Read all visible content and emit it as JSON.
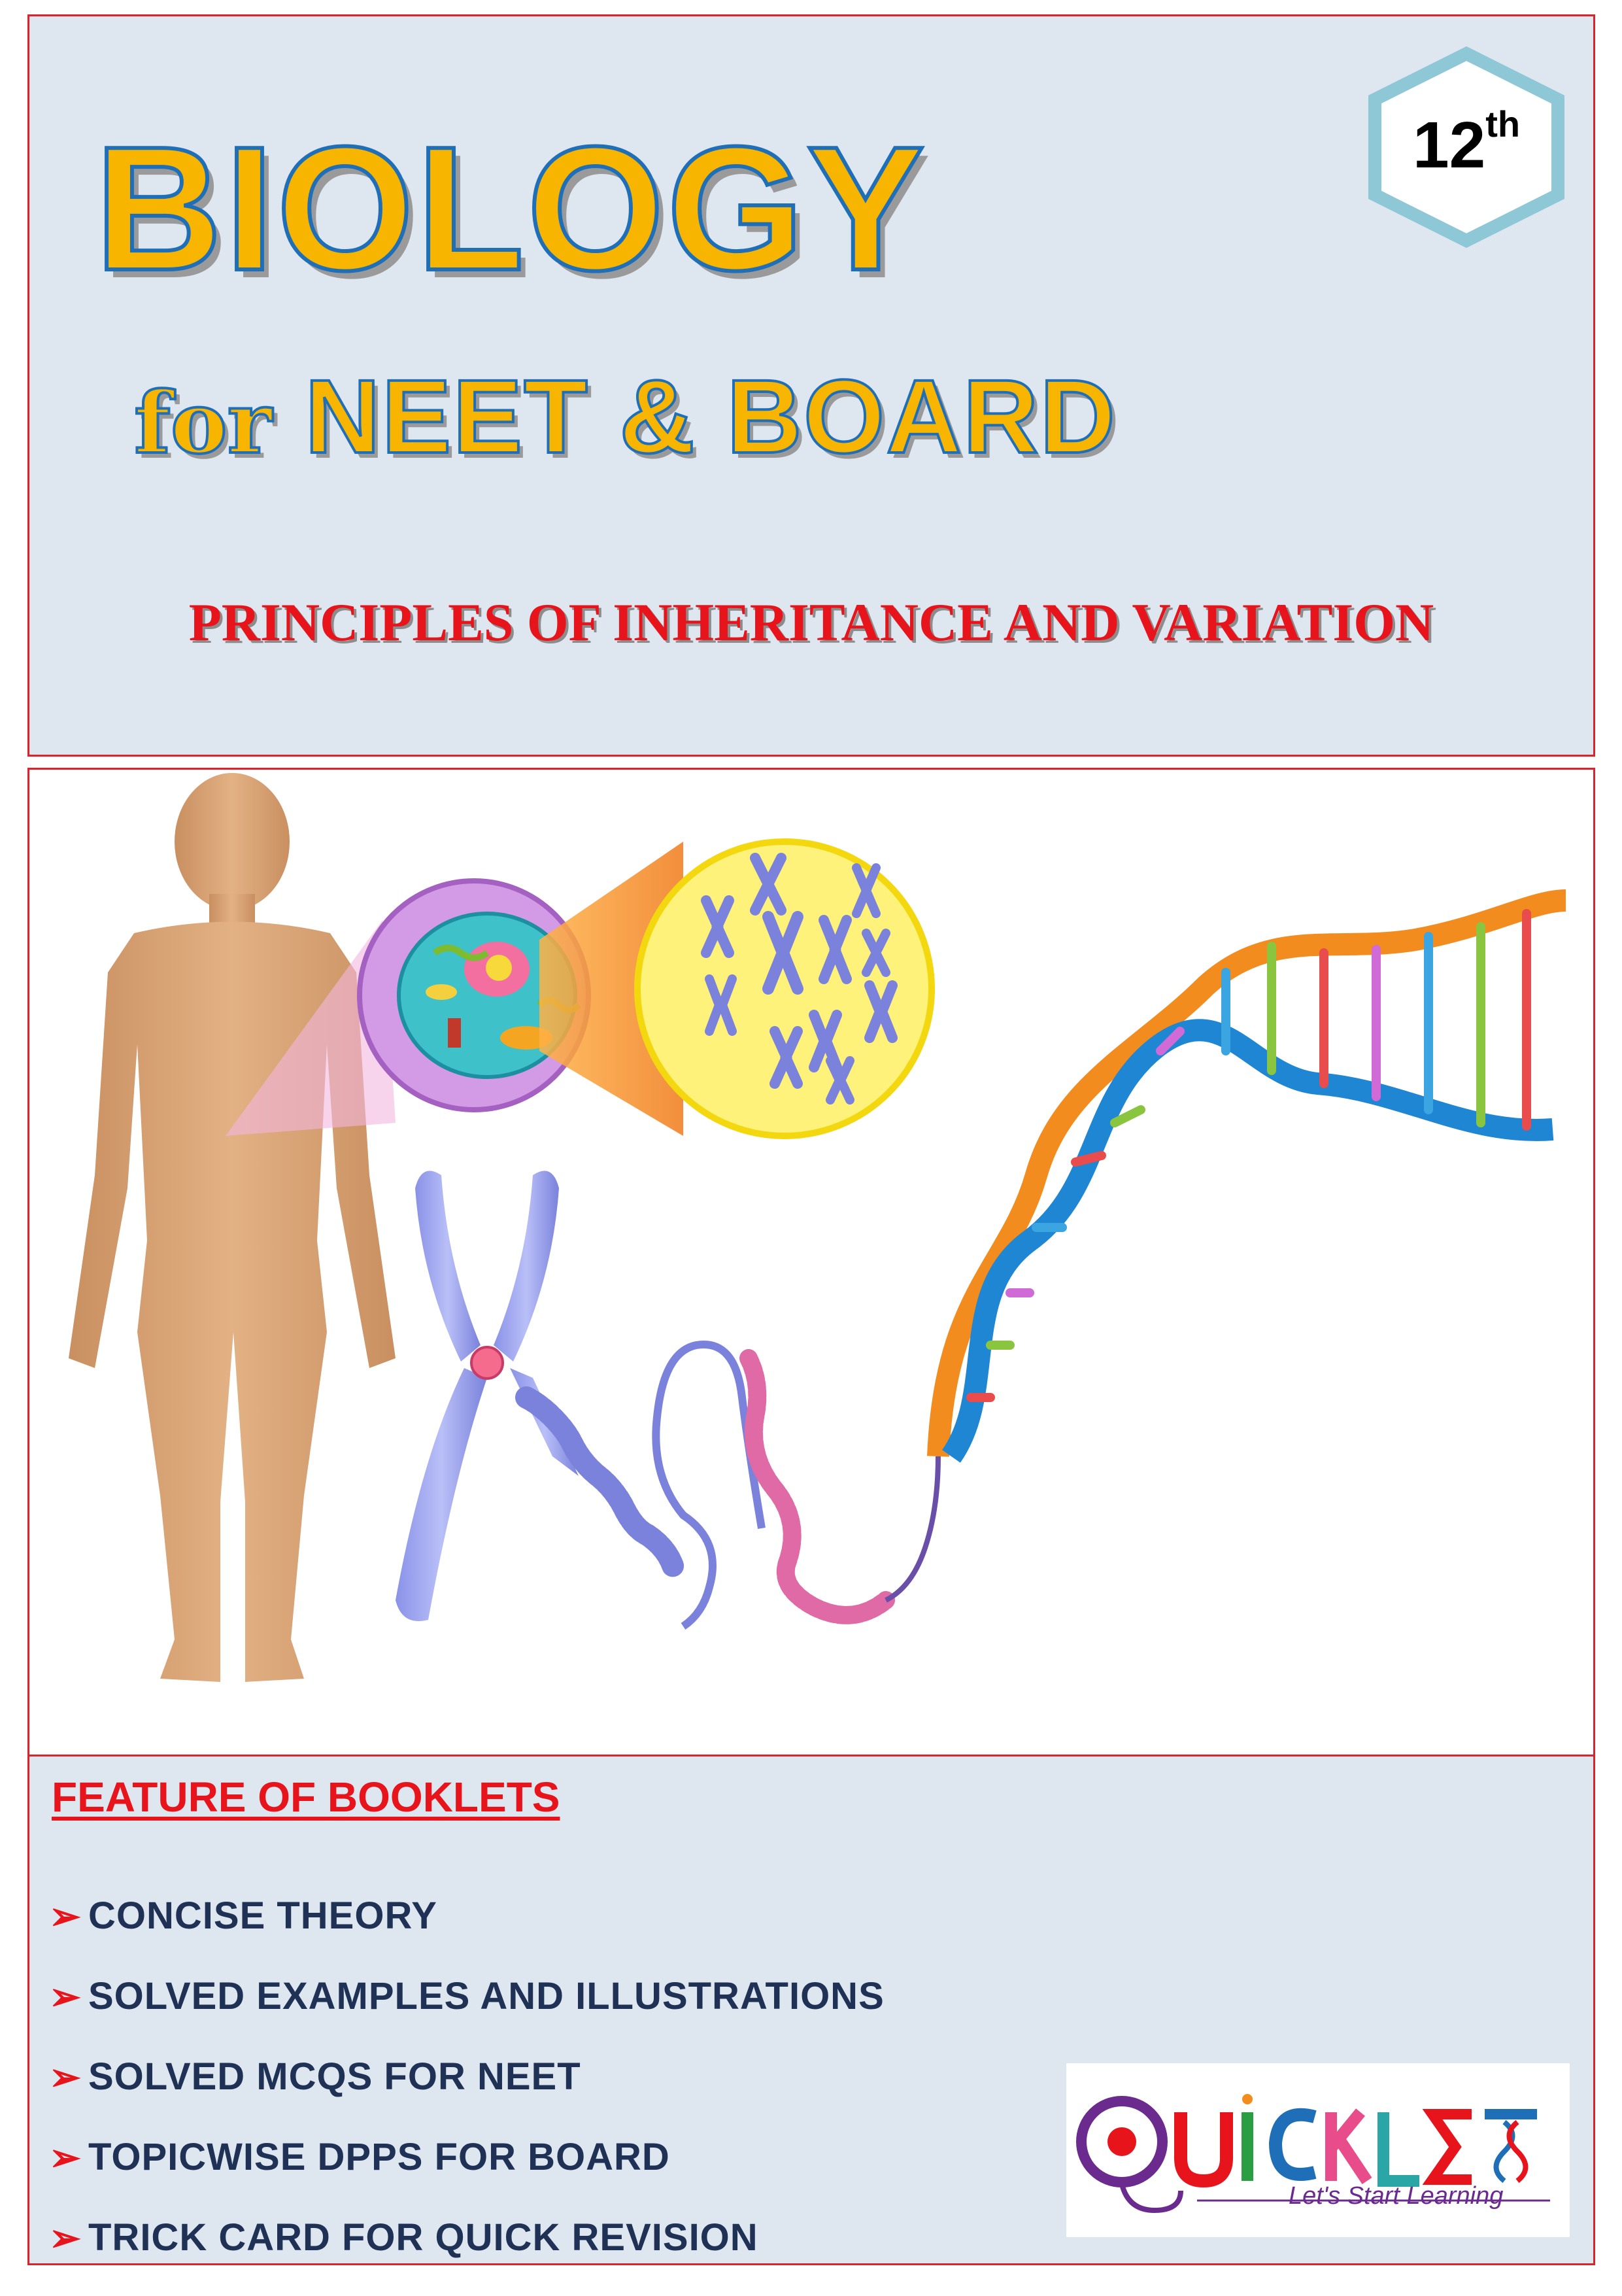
{
  "header": {
    "title": "BIOLOGY",
    "subtitle_for": "for",
    "subtitle_main": "NEET & BOARD",
    "chapter": "PRINCIPLES OF INHERITANCE AND VARIATION",
    "grade_number": "12",
    "grade_suffix": "th"
  },
  "features": {
    "heading": "FEATURE OF BOOKLETS",
    "bullet_glyph": "➢",
    "items": [
      "CONCISE THEORY",
      "SOLVED EXAMPLES AND ILLUSTRATIONS",
      "SOLVED MCQS FOR NEET",
      "TOPICWISE DPPS FOR BOARD",
      "TRICK CARD FOR QUICK REVISION"
    ]
  },
  "logo": {
    "name": "QUICKLET",
    "tagline": "Let's Start Learning"
  },
  "colors": {
    "panel_border": "#d9232d",
    "panel_fill": "#dee6f0",
    "title_fill": "#f7b500",
    "title_stroke": "#1f6fb8",
    "chapter_red": "#e8141c",
    "feature_text": "#1f3154"
  },
  "illustration_icons": [
    "human-body-icon",
    "cell-icon",
    "chromosome-cluster-icon",
    "chromosome-icon",
    "dna-helix-icon"
  ]
}
